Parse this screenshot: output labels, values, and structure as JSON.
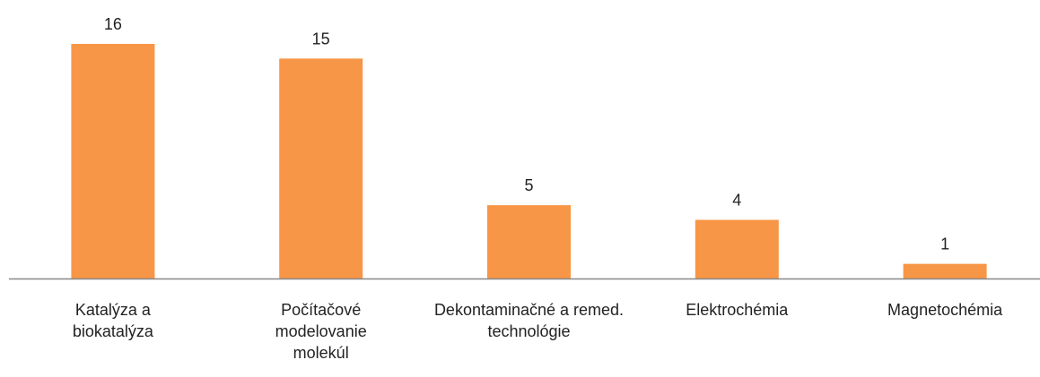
{
  "chart_data": {
    "type": "bar",
    "categories": [
      "Katalýza a biokatalýza",
      "Počítačové modelovanie molekúl",
      "Dekontaminačné a remed. technológie",
      "Elektrochémia",
      "Magnetochémia"
    ],
    "values": [
      16,
      15,
      5,
      4,
      1
    ],
    "color": "#f79646"
  }
}
